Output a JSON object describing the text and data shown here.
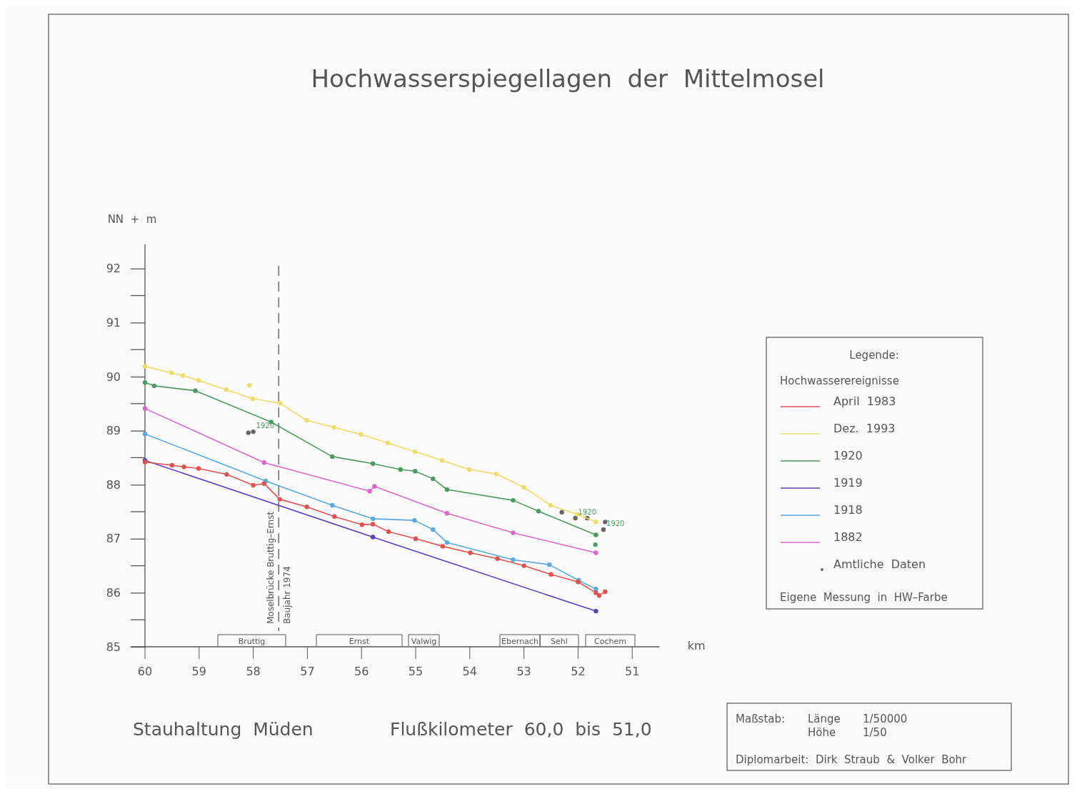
{
  "chart_data": {
    "type": "line",
    "title": "Hochwasserspiegellagen  der  Mittelmosel",
    "xlabel": "km",
    "ylabel": "NN  +  m",
    "legend_title": "Legende:",
    "legend": "right",
    "marker": "circle",
    "line_style": "solid",
    "xlim": [
      60,
      50.5
    ],
    "xticks": [
      60,
      59,
      58,
      57,
      56,
      55,
      54,
      53,
      52,
      51
    ],
    "ylim": [
      85,
      92.45
    ],
    "yticks": [
      85,
      86,
      87,
      88,
      89,
      90,
      91,
      92
    ],
    "series": [
      {
        "name": "April  1983",
        "color": "#e0524f",
        "x": [
          60,
          59.5,
          59.28,
          59.01,
          58.49,
          58,
          57.8,
          57.51,
          57.01,
          56.5,
          55.99,
          55.79,
          55.5,
          55,
          54.5,
          53.99,
          53.49,
          53,
          52.5,
          52,
          51.67,
          51.61,
          51.5
        ],
        "values": [
          88.42,
          88.36,
          88.33,
          88.3,
          88.19,
          87.99,
          88.02,
          87.73,
          87.59,
          87.41,
          87.26,
          87.27,
          87.13,
          87,
          86.86,
          86.74,
          86.63,
          86.5,
          86.34,
          86.2,
          86,
          85.95,
          86.02
        ]
      },
      {
        "name": "Dez.  1993",
        "color": "#eedc6a",
        "x": [
          60,
          59.51,
          59.3,
          59.01,
          58.5,
          58.01,
          57.51,
          57.01,
          56.51,
          56.01,
          55.51,
          55.01,
          54.51,
          54.01,
          53.51,
          53,
          52.51,
          52.01,
          51.67
        ],
        "values": [
          90.19,
          90.07,
          90.02,
          89.93,
          89.76,
          89.59,
          89.51,
          89.19,
          89.06,
          88.93,
          88.77,
          88.61,
          88.45,
          88.28,
          88.2,
          87.95,
          87.62,
          87.45,
          87.31
        ]
      },
      {
        "name": "1920",
        "color": "#4f9a63",
        "x": [
          60,
          59.83,
          59.07,
          57.67,
          56.54,
          55.79,
          55.28,
          55.01,
          54.68,
          54.42,
          53.2,
          52.73,
          51.67
        ],
        "values": [
          89.89,
          89.83,
          89.74,
          89.16,
          88.52,
          88.39,
          88.28,
          88.25,
          88.11,
          87.91,
          87.71,
          87.51,
          87.07
        ]
      },
      {
        "name": "1919",
        "color": "#5b3fb5",
        "x": [
          60,
          55.79,
          51.67
        ],
        "values": [
          88.45,
          87.03,
          85.66
        ]
      },
      {
        "name": "1918",
        "color": "#5aa8e0",
        "x": [
          60,
          57.77,
          56.54,
          55.79,
          55.02,
          54.68,
          54.42,
          53.2,
          52.53,
          51.99,
          51.67
        ],
        "values": [
          88.94,
          88.07,
          87.62,
          87.37,
          87.34,
          87.17,
          86.93,
          86.61,
          86.52,
          86.23,
          86.07
        ]
      },
      {
        "name": "1882",
        "color": "#d966cc",
        "x": [
          60,
          57.8,
          55.85,
          55.76,
          54.42,
          53.2,
          51.67
        ],
        "values": [
          89.41,
          88.41,
          87.88,
          87.97,
          87.47,
          87.11,
          86.74
        ]
      },
      {
        "name": "Amtliche  Daten",
        "type": "scatter",
        "color": "#666666",
        "x": [
          58.09,
          58,
          52.3,
          52.05,
          51.83,
          51.53,
          51.5
        ],
        "values": [
          88.96,
          88.98,
          87.49,
          87.38,
          87.38,
          87.17,
          87.31
        ]
      },
      {
        "type": "scatter",
        "color": "#eedc6a",
        "x": [
          58.07
        ],
        "values": [
          89.84
        ]
      },
      {
        "type": "scatter",
        "color": "#4f9a63",
        "x": [
          51.68
        ],
        "values": [
          86.89
        ]
      }
    ],
    "ref_lines": [
      {
        "axis": "x",
        "value": 57.53,
        "label": "Moselbrücke Bruttig–Ernst\nBaujahr 1974",
        "color": "#555555",
        "line_style": "dashed"
      }
    ],
    "annotations": [
      "Hochwasserereignisse",
      "Eigene  Messung  in  HW–Farbe",
      "Stauhaltung  Müden",
      "Flußkilometer  60,0  bis  51,0",
      "Maßstab:",
      "Länge",
      "1/50000",
      "Höhe",
      "1/50",
      "Diplomarbeit:  Dirk  Straub  &  Volker  Bohr",
      "Bruttig",
      "Ernst",
      "Valwig",
      "Ebernach",
      "Sehl",
      "Cochem",
      {
        "text": "1920",
        "x": 58,
        "y": 88.98
      },
      {
        "text": "1920",
        "x": 52.05,
        "y": 87.38
      },
      {
        "text": "1920",
        "x": 51.53,
        "y": 87.17
      }
    ]
  }
}
